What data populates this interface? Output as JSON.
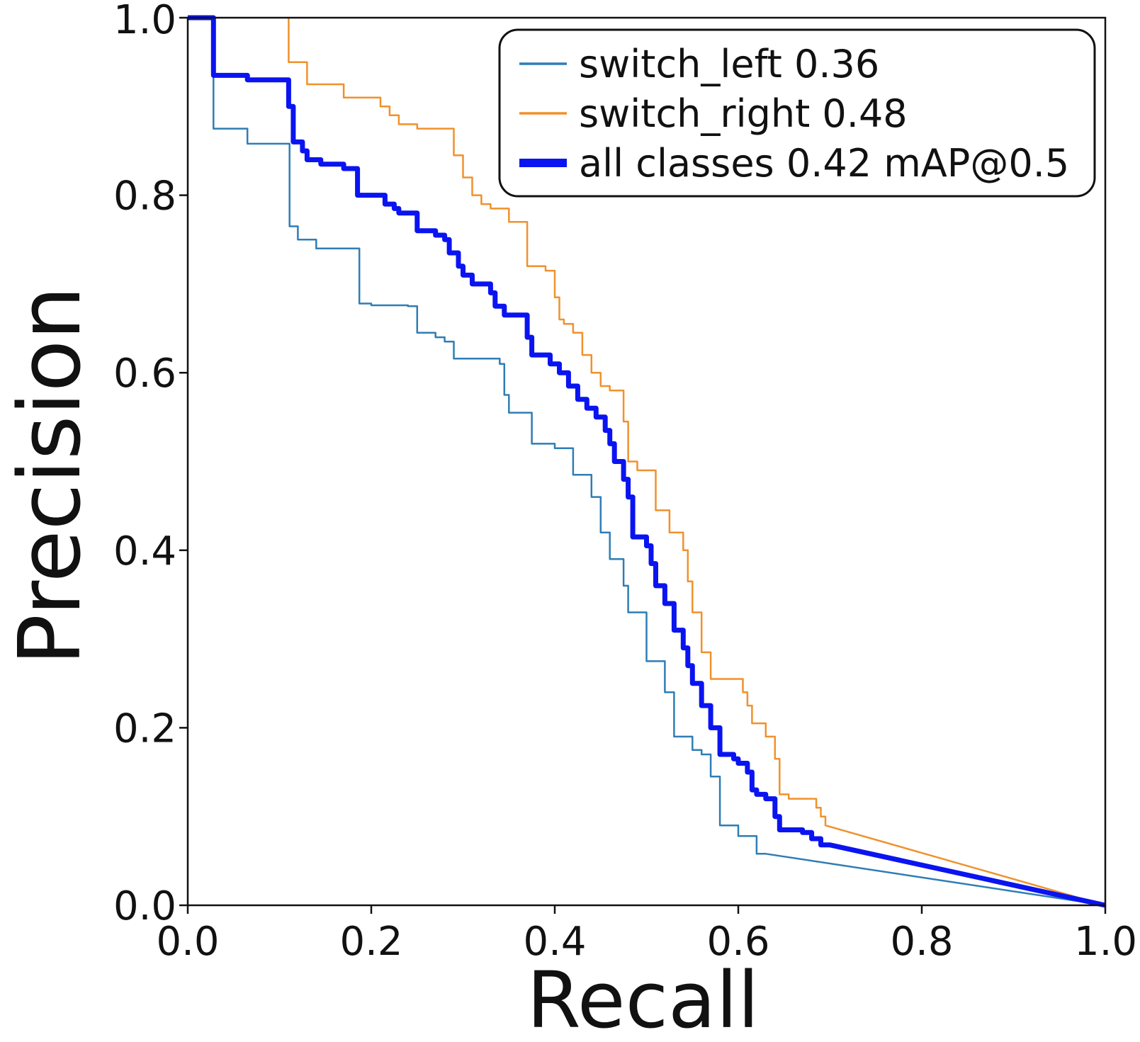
{
  "chart_data": {
    "type": "line",
    "title": "",
    "xlabel": "Recall",
    "ylabel": "Precision",
    "xlim": [
      0,
      1
    ],
    "ylim": [
      0,
      1
    ],
    "xticks": [
      "0.0",
      "0.2",
      "0.4",
      "0.6",
      "0.8",
      "1.0"
    ],
    "yticks": [
      "0.0",
      "0.2",
      "0.4",
      "0.6",
      "0.8",
      "1.0"
    ],
    "grid": false,
    "legend_position": "top-right",
    "series": [
      {
        "name": "switch_left 0.36",
        "color": "#2f7db5",
        "points": [
          [
            0.0,
            1.0
          ],
          [
            0.028,
            1.0
          ],
          [
            0.028,
            0.875
          ],
          [
            0.065,
            0.875
          ],
          [
            0.065,
            0.858
          ],
          [
            0.111,
            0.858
          ],
          [
            0.111,
            0.765
          ],
          [
            0.12,
            0.765
          ],
          [
            0.12,
            0.75
          ],
          [
            0.14,
            0.75
          ],
          [
            0.14,
            0.74
          ],
          [
            0.187,
            0.74
          ],
          [
            0.187,
            0.678
          ],
          [
            0.2,
            0.678
          ],
          [
            0.2,
            0.676
          ],
          [
            0.24,
            0.676
          ],
          [
            0.24,
            0.675
          ],
          [
            0.25,
            0.675
          ],
          [
            0.25,
            0.645
          ],
          [
            0.27,
            0.645
          ],
          [
            0.27,
            0.64
          ],
          [
            0.28,
            0.64
          ],
          [
            0.28,
            0.635
          ],
          [
            0.29,
            0.635
          ],
          [
            0.29,
            0.616
          ],
          [
            0.34,
            0.616
          ],
          [
            0.34,
            0.61
          ],
          [
            0.345,
            0.61
          ],
          [
            0.345,
            0.575
          ],
          [
            0.35,
            0.575
          ],
          [
            0.35,
            0.555
          ],
          [
            0.375,
            0.555
          ],
          [
            0.375,
            0.52
          ],
          [
            0.4,
            0.52
          ],
          [
            0.4,
            0.515
          ],
          [
            0.42,
            0.515
          ],
          [
            0.42,
            0.485
          ],
          [
            0.44,
            0.485
          ],
          [
            0.44,
            0.46
          ],
          [
            0.45,
            0.46
          ],
          [
            0.45,
            0.42
          ],
          [
            0.46,
            0.42
          ],
          [
            0.46,
            0.39
          ],
          [
            0.475,
            0.39
          ],
          [
            0.475,
            0.36
          ],
          [
            0.48,
            0.36
          ],
          [
            0.48,
            0.33
          ],
          [
            0.5,
            0.33
          ],
          [
            0.5,
            0.275
          ],
          [
            0.52,
            0.275
          ],
          [
            0.52,
            0.24
          ],
          [
            0.53,
            0.24
          ],
          [
            0.53,
            0.19
          ],
          [
            0.55,
            0.19
          ],
          [
            0.55,
            0.175
          ],
          [
            0.56,
            0.175
          ],
          [
            0.56,
            0.17
          ],
          [
            0.57,
            0.17
          ],
          [
            0.57,
            0.145
          ],
          [
            0.58,
            0.145
          ],
          [
            0.58,
            0.09
          ],
          [
            0.6,
            0.09
          ],
          [
            0.6,
            0.078
          ],
          [
            0.62,
            0.078
          ],
          [
            0.62,
            0.058
          ],
          [
            0.63,
            0.058
          ],
          [
            1.0,
            0.0
          ]
        ]
      },
      {
        "name": "switch_right 0.48",
        "color": "#f0912c",
        "points": [
          [
            0.11,
            1.0
          ],
          [
            0.11,
            0.95
          ],
          [
            0.13,
            0.95
          ],
          [
            0.13,
            0.925
          ],
          [
            0.17,
            0.925
          ],
          [
            0.17,
            0.91
          ],
          [
            0.21,
            0.91
          ],
          [
            0.21,
            0.9
          ],
          [
            0.22,
            0.9
          ],
          [
            0.22,
            0.89
          ],
          [
            0.23,
            0.89
          ],
          [
            0.23,
            0.88
          ],
          [
            0.25,
            0.88
          ],
          [
            0.25,
            0.875
          ],
          [
            0.29,
            0.875
          ],
          [
            0.29,
            0.845
          ],
          [
            0.3,
            0.845
          ],
          [
            0.3,
            0.82
          ],
          [
            0.31,
            0.82
          ],
          [
            0.31,
            0.8
          ],
          [
            0.32,
            0.8
          ],
          [
            0.32,
            0.79
          ],
          [
            0.33,
            0.79
          ],
          [
            0.33,
            0.785
          ],
          [
            0.35,
            0.785
          ],
          [
            0.35,
            0.77
          ],
          [
            0.37,
            0.77
          ],
          [
            0.37,
            0.72
          ],
          [
            0.39,
            0.72
          ],
          [
            0.39,
            0.715
          ],
          [
            0.4,
            0.715
          ],
          [
            0.4,
            0.685
          ],
          [
            0.405,
            0.685
          ],
          [
            0.405,
            0.66
          ],
          [
            0.41,
            0.66
          ],
          [
            0.41,
            0.655
          ],
          [
            0.42,
            0.655
          ],
          [
            0.42,
            0.645
          ],
          [
            0.43,
            0.645
          ],
          [
            0.43,
            0.62
          ],
          [
            0.44,
            0.62
          ],
          [
            0.44,
            0.6
          ],
          [
            0.45,
            0.6
          ],
          [
            0.45,
            0.585
          ],
          [
            0.46,
            0.585
          ],
          [
            0.46,
            0.58
          ],
          [
            0.475,
            0.58
          ],
          [
            0.475,
            0.545
          ],
          [
            0.48,
            0.545
          ],
          [
            0.48,
            0.5
          ],
          [
            0.49,
            0.5
          ],
          [
            0.49,
            0.49
          ],
          [
            0.51,
            0.49
          ],
          [
            0.51,
            0.445
          ],
          [
            0.525,
            0.445
          ],
          [
            0.525,
            0.42
          ],
          [
            0.54,
            0.42
          ],
          [
            0.54,
            0.4
          ],
          [
            0.545,
            0.4
          ],
          [
            0.545,
            0.365
          ],
          [
            0.55,
            0.365
          ],
          [
            0.55,
            0.33
          ],
          [
            0.56,
            0.33
          ],
          [
            0.56,
            0.285
          ],
          [
            0.57,
            0.285
          ],
          [
            0.57,
            0.255
          ],
          [
            0.605,
            0.255
          ],
          [
            0.605,
            0.24
          ],
          [
            0.61,
            0.24
          ],
          [
            0.61,
            0.225
          ],
          [
            0.615,
            0.225
          ],
          [
            0.615,
            0.205
          ],
          [
            0.63,
            0.205
          ],
          [
            0.63,
            0.19
          ],
          [
            0.64,
            0.19
          ],
          [
            0.64,
            0.165
          ],
          [
            0.645,
            0.165
          ],
          [
            0.645,
            0.125
          ],
          [
            0.655,
            0.125
          ],
          [
            0.655,
            0.12
          ],
          [
            0.685,
            0.12
          ],
          [
            0.685,
            0.11
          ],
          [
            0.69,
            0.11
          ],
          [
            0.69,
            0.1
          ],
          [
            0.695,
            0.1
          ],
          [
            0.695,
            0.09
          ],
          [
            1.0,
            0.0
          ]
        ]
      },
      {
        "name": "all classes 0.42 mAP@0.5",
        "color": "#0a14f0",
        "points": [
          [
            0.0,
            1.0
          ],
          [
            0.028,
            1.0
          ],
          [
            0.028,
            0.935
          ],
          [
            0.065,
            0.935
          ],
          [
            0.065,
            0.93
          ],
          [
            0.11,
            0.93
          ],
          [
            0.11,
            0.9
          ],
          [
            0.115,
            0.9
          ],
          [
            0.115,
            0.86
          ],
          [
            0.125,
            0.86
          ],
          [
            0.125,
            0.85
          ],
          [
            0.13,
            0.85
          ],
          [
            0.13,
            0.84
          ],
          [
            0.145,
            0.84
          ],
          [
            0.145,
            0.835
          ],
          [
            0.17,
            0.835
          ],
          [
            0.17,
            0.83
          ],
          [
            0.185,
            0.83
          ],
          [
            0.185,
            0.8
          ],
          [
            0.215,
            0.8
          ],
          [
            0.215,
            0.79
          ],
          [
            0.225,
            0.79
          ],
          [
            0.225,
            0.785
          ],
          [
            0.23,
            0.785
          ],
          [
            0.23,
            0.78
          ],
          [
            0.25,
            0.78
          ],
          [
            0.25,
            0.76
          ],
          [
            0.27,
            0.76
          ],
          [
            0.27,
            0.755
          ],
          [
            0.28,
            0.755
          ],
          [
            0.28,
            0.75
          ],
          [
            0.285,
            0.75
          ],
          [
            0.285,
            0.735
          ],
          [
            0.295,
            0.735
          ],
          [
            0.295,
            0.72
          ],
          [
            0.3,
            0.72
          ],
          [
            0.3,
            0.71
          ],
          [
            0.31,
            0.71
          ],
          [
            0.31,
            0.7
          ],
          [
            0.33,
            0.7
          ],
          [
            0.33,
            0.69
          ],
          [
            0.335,
            0.69
          ],
          [
            0.335,
            0.675
          ],
          [
            0.345,
            0.675
          ],
          [
            0.345,
            0.665
          ],
          [
            0.37,
            0.665
          ],
          [
            0.37,
            0.64
          ],
          [
            0.375,
            0.64
          ],
          [
            0.375,
            0.62
          ],
          [
            0.395,
            0.62
          ],
          [
            0.395,
            0.61
          ],
          [
            0.405,
            0.61
          ],
          [
            0.405,
            0.6
          ],
          [
            0.415,
            0.6
          ],
          [
            0.415,
            0.585
          ],
          [
            0.425,
            0.585
          ],
          [
            0.425,
            0.57
          ],
          [
            0.435,
            0.57
          ],
          [
            0.435,
            0.56
          ],
          [
            0.445,
            0.56
          ],
          [
            0.445,
            0.55
          ],
          [
            0.455,
            0.55
          ],
          [
            0.455,
            0.535
          ],
          [
            0.46,
            0.535
          ],
          [
            0.46,
            0.52
          ],
          [
            0.465,
            0.52
          ],
          [
            0.465,
            0.5
          ],
          [
            0.475,
            0.5
          ],
          [
            0.475,
            0.48
          ],
          [
            0.48,
            0.48
          ],
          [
            0.48,
            0.46
          ],
          [
            0.485,
            0.46
          ],
          [
            0.485,
            0.415
          ],
          [
            0.5,
            0.415
          ],
          [
            0.5,
            0.405
          ],
          [
            0.505,
            0.405
          ],
          [
            0.505,
            0.385
          ],
          [
            0.51,
            0.385
          ],
          [
            0.51,
            0.36
          ],
          [
            0.52,
            0.36
          ],
          [
            0.52,
            0.34
          ],
          [
            0.53,
            0.34
          ],
          [
            0.53,
            0.31
          ],
          [
            0.54,
            0.31
          ],
          [
            0.54,
            0.29
          ],
          [
            0.545,
            0.29
          ],
          [
            0.545,
            0.27
          ],
          [
            0.55,
            0.27
          ],
          [
            0.55,
            0.25
          ],
          [
            0.56,
            0.25
          ],
          [
            0.56,
            0.225
          ],
          [
            0.57,
            0.225
          ],
          [
            0.57,
            0.2
          ],
          [
            0.58,
            0.2
          ],
          [
            0.58,
            0.17
          ],
          [
            0.595,
            0.17
          ],
          [
            0.595,
            0.165
          ],
          [
            0.6,
            0.165
          ],
          [
            0.6,
            0.16
          ],
          [
            0.61,
            0.16
          ],
          [
            0.61,
            0.15
          ],
          [
            0.615,
            0.15
          ],
          [
            0.615,
            0.13
          ],
          [
            0.62,
            0.13
          ],
          [
            0.62,
            0.125
          ],
          [
            0.63,
            0.125
          ],
          [
            0.63,
            0.12
          ],
          [
            0.64,
            0.12
          ],
          [
            0.64,
            0.1
          ],
          [
            0.645,
            0.1
          ],
          [
            0.645,
            0.085
          ],
          [
            0.67,
            0.085
          ],
          [
            0.67,
            0.082
          ],
          [
            0.68,
            0.082
          ],
          [
            0.68,
            0.075
          ],
          [
            0.69,
            0.075
          ],
          [
            0.69,
            0.068
          ],
          [
            0.7,
            0.068
          ],
          [
            1.0,
            0.0
          ]
        ]
      }
    ]
  }
}
